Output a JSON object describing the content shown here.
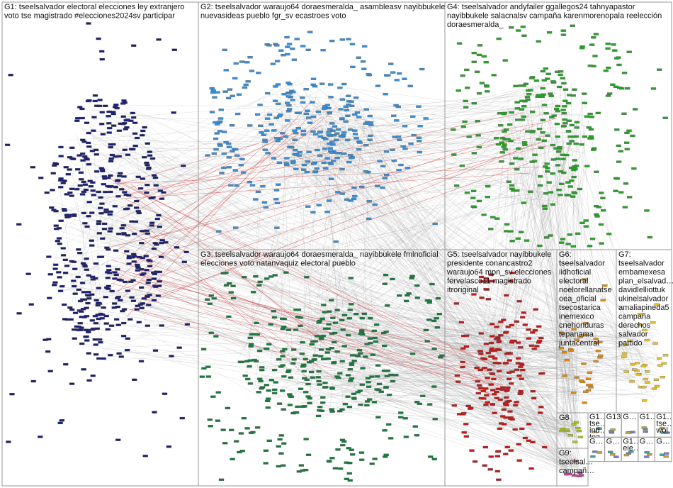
{
  "groups": [
    {
      "lines": [
        "G1: tseelsalvador electoral elecciones ley extranjero",
        "voto tse magistrado #elecciones2024sv participar"
      ]
    },
    {
      "lines": [
        "G2: tseelsalvador waraujo64 doraesmeralda_ asambleasv nayibbukele",
        "nuevasideas pueblo fgr_sv ecastroes voto"
      ]
    },
    {
      "lines": [
        "G4: tseelsalvador andyfailer ggallegos24 tahnyapastor",
        "nayibbukele salacnalsv campaña karenmorenopala reelección",
        "doraesmeralda_"
      ]
    },
    {
      "lines": [
        "G3: tseelsalvador waraujo64 doraesmeralda_ nayibbukele fmlnoficial",
        "elecciones voto natanvaquiz electoral pueblo"
      ]
    },
    {
      "lines": [
        "G5: tseelsalvador nayibbukele",
        "presidente conancastro2",
        "waraujo64 mpn_sv elecciones",
        "fervelasco11 magistrado",
        "itroriginal"
      ]
    },
    {
      "lines": [
        "G6:",
        "tseelsalvador",
        "iidhoficial",
        "electoral",
        "noelorellanatse",
        "oea_oficial",
        "tsecostarica",
        "inemexico",
        "cnehonduras",
        "tepanama",
        "juntacentral"
      ]
    },
    {
      "lines": [
        "G7:",
        "tseelsalvador",
        "embamexesa",
        "plan_elsalvad…",
        "davidlelliottuk",
        "ukinelsalvador",
        "amaliapineda5",
        "campaña",
        "derechos",
        "salvador",
        "partido"
      ]
    },
    {
      "lines": [
        "G8"
      ]
    },
    {
      "lines": [
        "G9:",
        "tseelsal…",
        "campañ…"
      ]
    }
  ],
  "small_groups": [
    {
      "lines": [
        "G1…",
        "tse…",
        "ind…",
        "tea…"
      ]
    },
    {
      "lines": [
        "G13"
      ]
    },
    {
      "lines": [
        "G…"
      ]
    },
    {
      "lines": [
        "G1…"
      ]
    },
    {
      "lines": [
        "G1…",
        "tse…",
        "wol…"
      ]
    },
    {
      "lines": [
        "G…"
      ]
    },
    {
      "lines": [
        "G…"
      ]
    },
    {
      "lines": [
        "G1…",
        "eie…"
      ]
    },
    {
      "lines": [
        "G…"
      ]
    },
    {
      "lines": [
        "G…"
      ]
    }
  ]
}
